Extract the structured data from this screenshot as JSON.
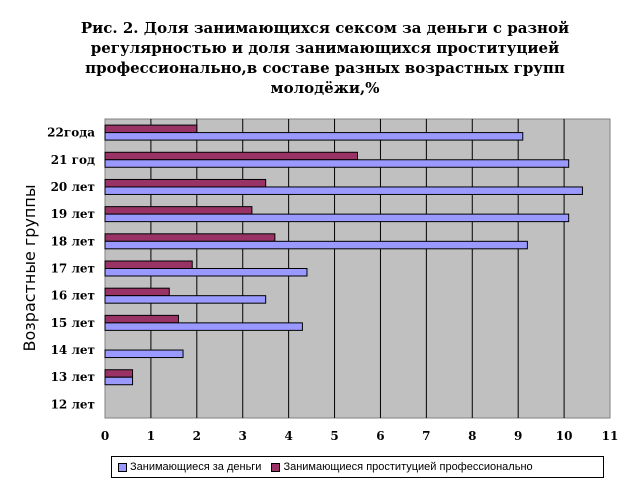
{
  "chart_data": {
    "type": "bar",
    "orientation": "horizontal",
    "title": "Рис. 2. Доля занимающихся сексом за деньги с разной регулярностью и доля занимающихся проституцией профессионально,в составе разных возрастных групп молодёжи,%",
    "ylabel": "Возрастные группы",
    "xlabel": "",
    "xlim": [
      0,
      11
    ],
    "xticks": [
      "0",
      "1",
      "2",
      "3",
      "4",
      "5",
      "6",
      "7",
      "8",
      "9",
      "10",
      "11"
    ],
    "categories": [
      "12 лет",
      "13 лет",
      "14 лет",
      "15 лет",
      "16 лет",
      "17 лет",
      "18 лет",
      "19 лет",
      "20 лет",
      "21 год",
      "22года"
    ],
    "series": [
      {
        "name": "Занимающиеся за деньги",
        "color": "#9999ff",
        "values": [
          0,
          0.6,
          1.7,
          4.3,
          3.5,
          4.4,
          9.2,
          10.1,
          10.4,
          10.1,
          9.1
        ]
      },
      {
        "name": "Занимающиеся проституцией профессионально",
        "color": "#993366",
        "values": [
          0,
          0.6,
          0,
          1.6,
          1.4,
          1.9,
          3.7,
          3.2,
          3.5,
          5.5,
          2.0
        ]
      }
    ],
    "grid": true,
    "legend_position": "bottom"
  }
}
